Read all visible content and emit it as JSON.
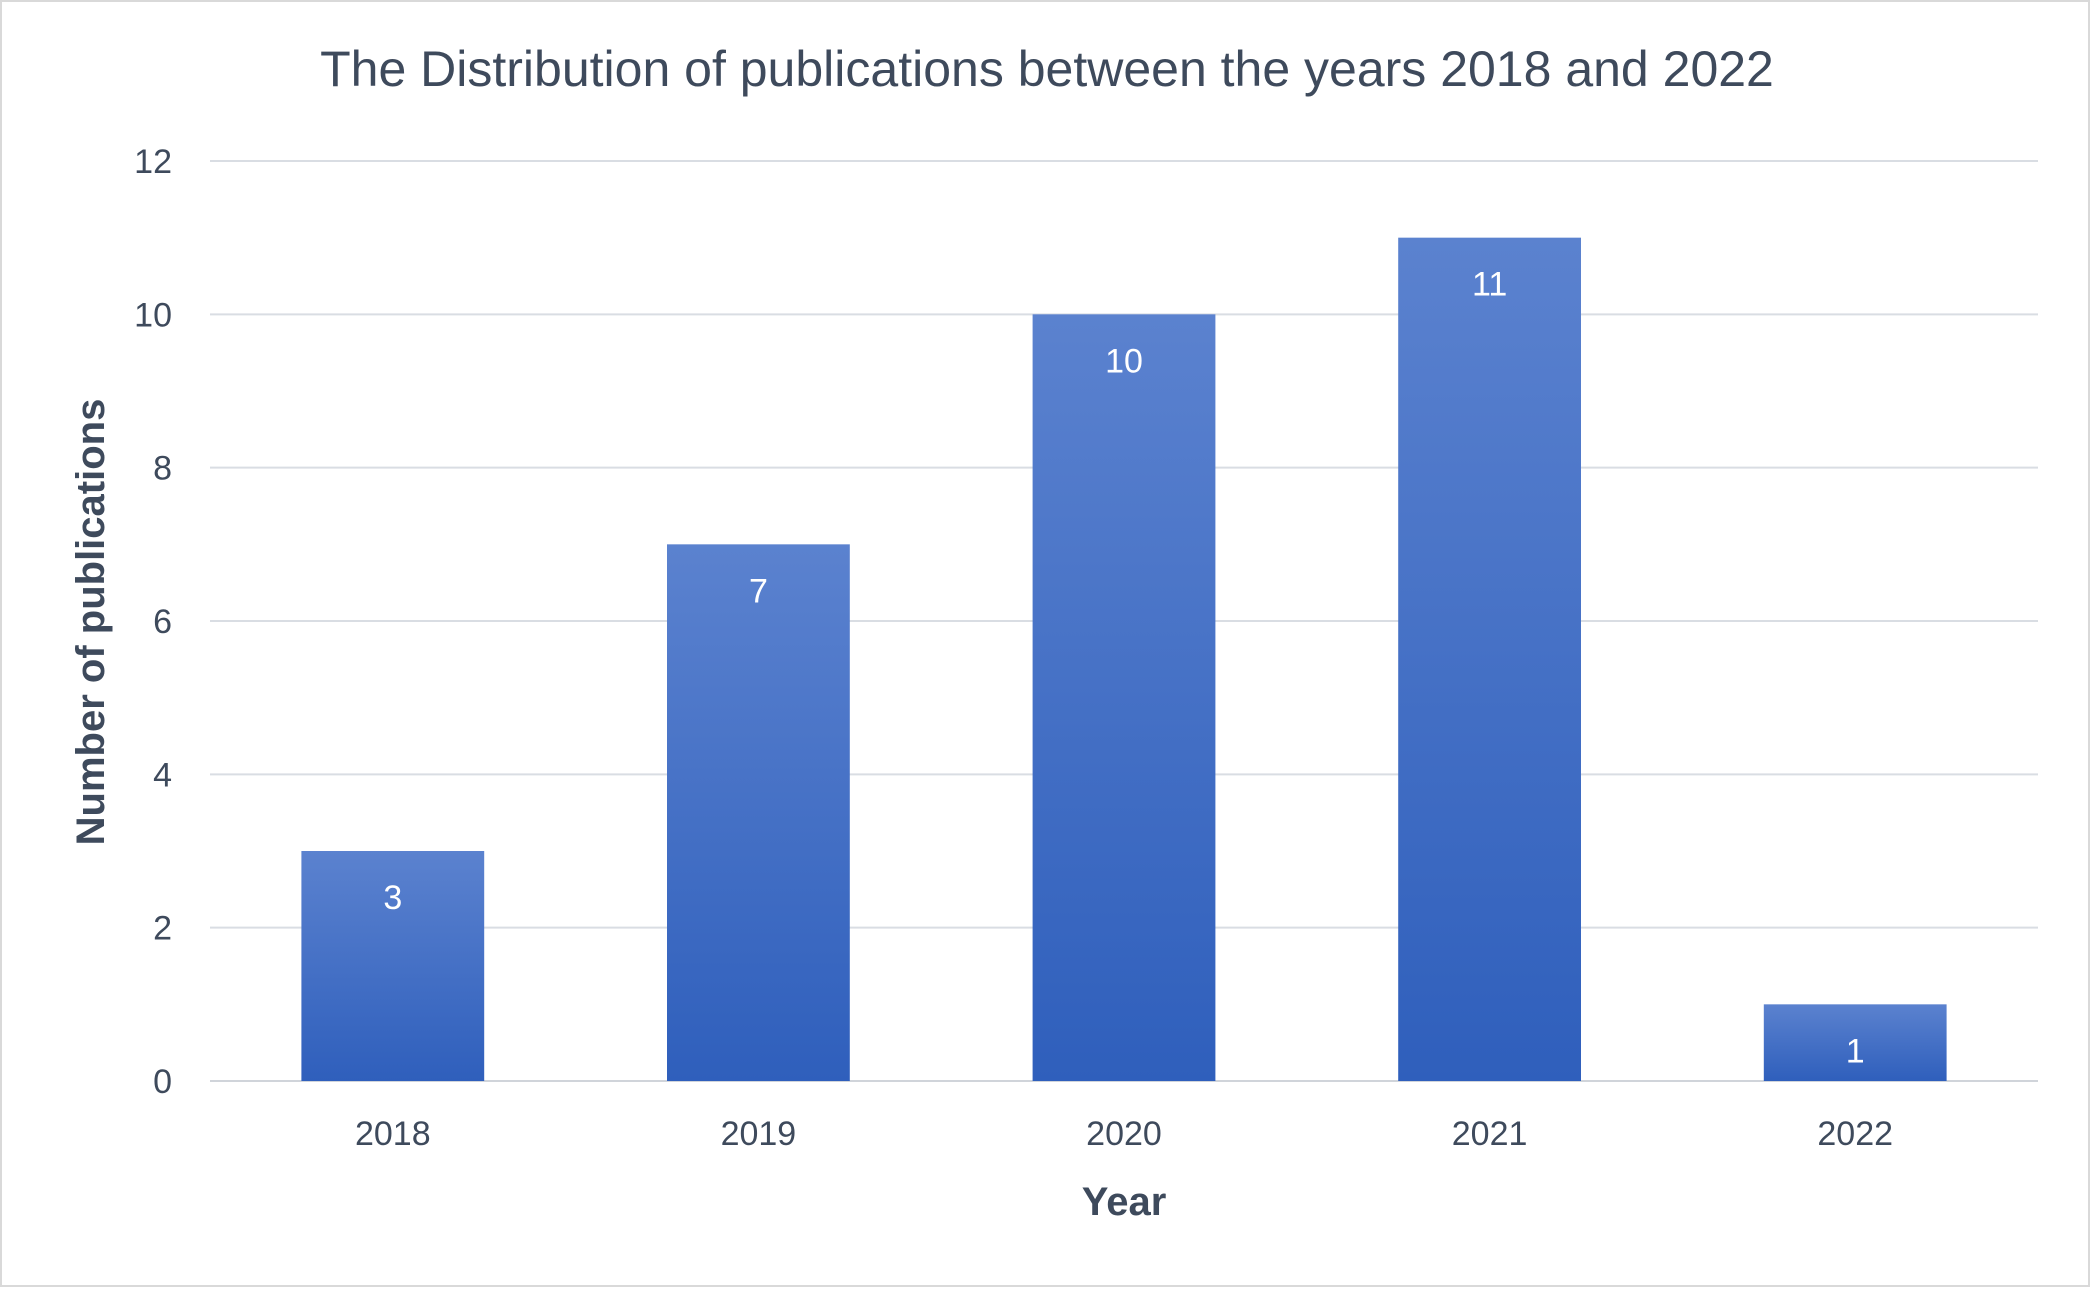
{
  "chart_data": {
    "type": "bar",
    "title": "The Distribution of publications between the years 2018 and 2022",
    "xlabel": "Year",
    "ylabel": "Number of publications",
    "categories": [
      "2018",
      "2019",
      "2020",
      "2021",
      "2022"
    ],
    "values": [
      3,
      7,
      10,
      11,
      1
    ],
    "data_labels": [
      "3",
      "7",
      "10",
      "11",
      "1"
    ],
    "ylim": [
      0,
      12
    ],
    "yticks": [
      0,
      2,
      4,
      6,
      8,
      10,
      12
    ],
    "grid": true,
    "legend": "none",
    "colors": {
      "bar_top": "#5b82cf",
      "bar_bottom": "#2f5fbc",
      "text": "#3e4a5c",
      "gridline": "#d9dde3"
    }
  }
}
